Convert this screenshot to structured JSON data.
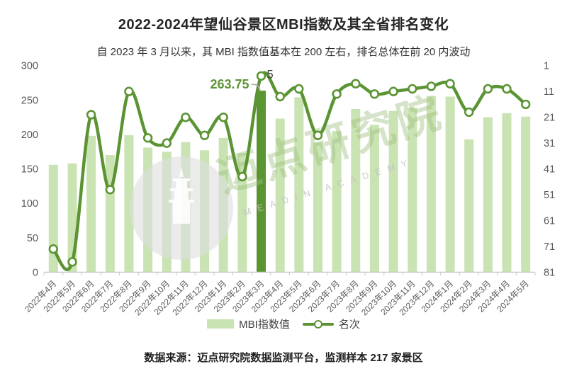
{
  "title": "2022-2024年望仙谷景区MBI指数及其全省排名变化",
  "subtitle": "自 2023 年 3 月以来，其 MBI 指数值基本在 200 左右，排名总体在前 20 内波动",
  "footer": "数据来源：迈点研究院数据监测平台，监测样本 217 家景区",
  "legend": {
    "bar_label": "MBI指数值",
    "line_label": "名次"
  },
  "watermark": {
    "cn": "迈点研究院",
    "en": "MEADIN ACADEMY"
  },
  "colors": {
    "bar_light": "#C9E3B2",
    "bar_dark": "#5B9433",
    "line": "#5B9433",
    "marker_fill": "#FFFFFF",
    "annotation_green": "#5B9433",
    "axis_text": "#595959",
    "axis_line": "#C9C9C9",
    "callout_gray": "#A6A6A6",
    "rank_label_dark": "#404040"
  },
  "chart_data": {
    "type": "bar",
    "combo": "bar+line",
    "title": "2022-2024年望仙谷景区MBI指数及其全省排名变化",
    "categories": [
      "2022年4月",
      "2022年5月",
      "2022年6月",
      "2022年7月",
      "2022年8月",
      "2022年9月",
      "2022年10月",
      "2022年11月",
      "2022年12月",
      "2023年1月",
      "2023年2月",
      "2023年3月",
      "2023年4月",
      "2023年5月",
      "2023年6月",
      "2023年7月",
      "2023年8月",
      "2023年9月",
      "2023年10月",
      "2023年11月",
      "2023年12月",
      "2024年1月",
      "2024年2月",
      "2024年3月",
      "2024年4月",
      "2024年5月"
    ],
    "series": [
      {
        "name": "MBI指数值",
        "type": "bar",
        "axis": "left",
        "values": [
          156,
          158,
          198,
          170,
          199,
          181,
          175,
          189,
          177,
          195,
          173,
          263.75,
          223,
          254,
          188,
          205,
          237,
          214,
          234,
          239,
          256,
          255,
          193,
          225,
          231,
          226
        ]
      },
      {
        "name": "名次",
        "type": "line",
        "axis": "right",
        "values": [
          72,
          77,
          20,
          49,
          11,
          29,
          31,
          21,
          28,
          21,
          44,
          5,
          13,
          10,
          28,
          12,
          8,
          12,
          11,
          10,
          9,
          8,
          19,
          10,
          10,
          16
        ]
      }
    ],
    "highlight_index": 11,
    "annotations": {
      "value_label": "263.75",
      "rank_label": "5"
    },
    "left_axis": {
      "ticks": [
        300,
        250,
        200,
        150,
        100,
        50,
        0
      ],
      "range": [
        0,
        300
      ]
    },
    "right_axis": {
      "ticks": [
        1,
        11,
        21,
        31,
        41,
        51,
        61,
        71,
        81
      ],
      "range": [
        1,
        81
      ],
      "inverted": true
    },
    "grid": false,
    "legend_position": "bottom"
  }
}
